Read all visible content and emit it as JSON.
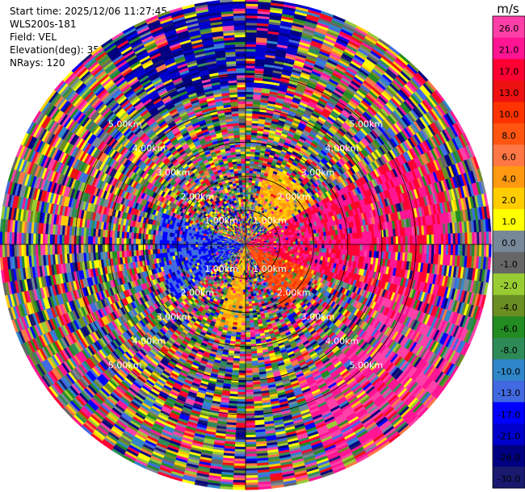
{
  "header": {
    "start_time": "Start time: 2025/12/06 11:27:45",
    "instrument": "WLS200s-181",
    "field": "Field: VEL",
    "elevation": "Elevation(deg): 35.00",
    "nrays": "NRays: 120"
  },
  "chart_data": {
    "type": "heatmap",
    "projection": "polar-ppi",
    "field": "VEL",
    "nrays": 120,
    "range_rings_km": [
      1,
      2,
      3,
      4,
      5
    ],
    "ring_labels": [
      "1.00km",
      "2.00km",
      "3.00km",
      "4.00km",
      "5.00km"
    ],
    "max_range_km": 7.2,
    "colorbar": {
      "unit": "m/s",
      "ticks": [
        "26.0",
        "21.0",
        "17.0",
        "13.0",
        "10.0",
        "8.0",
        "6.0",
        "4.0",
        "2.0",
        "1.0",
        "0.0",
        "-1.0",
        "-2.0",
        "-4.0",
        "-6.0",
        "-8.0",
        "-10.0",
        "-13.0",
        "-17.0",
        "-21.0",
        "-26.0",
        "-30.0"
      ],
      "colors": [
        "#ff3fa8",
        "#ff1493",
        "#ff0033",
        "#ee1111",
        "#ff3300",
        "#ff5511",
        "#ff7744",
        "#ff9911",
        "#ffcc00",
        "#ffff00",
        "#778899",
        "#666666",
        "#99cc33",
        "#6b8e23",
        "#228b22",
        "#2e8b57",
        "#2f86c9",
        "#4169e1",
        "#0000ff",
        "#0000cc",
        "#000080",
        "#191970"
      ]
    },
    "regions": [
      {
        "azimuth_deg": [
          60,
          110
        ],
        "range_km": [
          0,
          6
        ],
        "mean_velocity": 21.0
      },
      {
        "azimuth_deg": [
          110,
          160
        ],
        "range_km": [
          4.2,
          7.2
        ],
        "mean_velocity": 26.0
      },
      {
        "azimuth_deg": [
          85,
          150
        ],
        "range_km": [
          0,
          2.2
        ],
        "mean_velocity": 10.0
      },
      {
        "azimuth_deg": [
          180,
          200
        ],
        "range_km": [
          0,
          2.6
        ],
        "mean_velocity": 4.0
      },
      {
        "azimuth_deg": [
          230,
          290
        ],
        "range_km": [
          0,
          2.6
        ],
        "mean_velocity": -13.0
      },
      {
        "azimuth_deg": [
          -35,
          15
        ],
        "range_km": [
          4.6,
          7.2
        ],
        "mean_velocity": -21.0
      },
      {
        "azimuth_deg": [
          15,
          60
        ],
        "range_km": [
          0.8,
          2.4
        ],
        "mean_velocity": 4.0
      }
    ]
  }
}
